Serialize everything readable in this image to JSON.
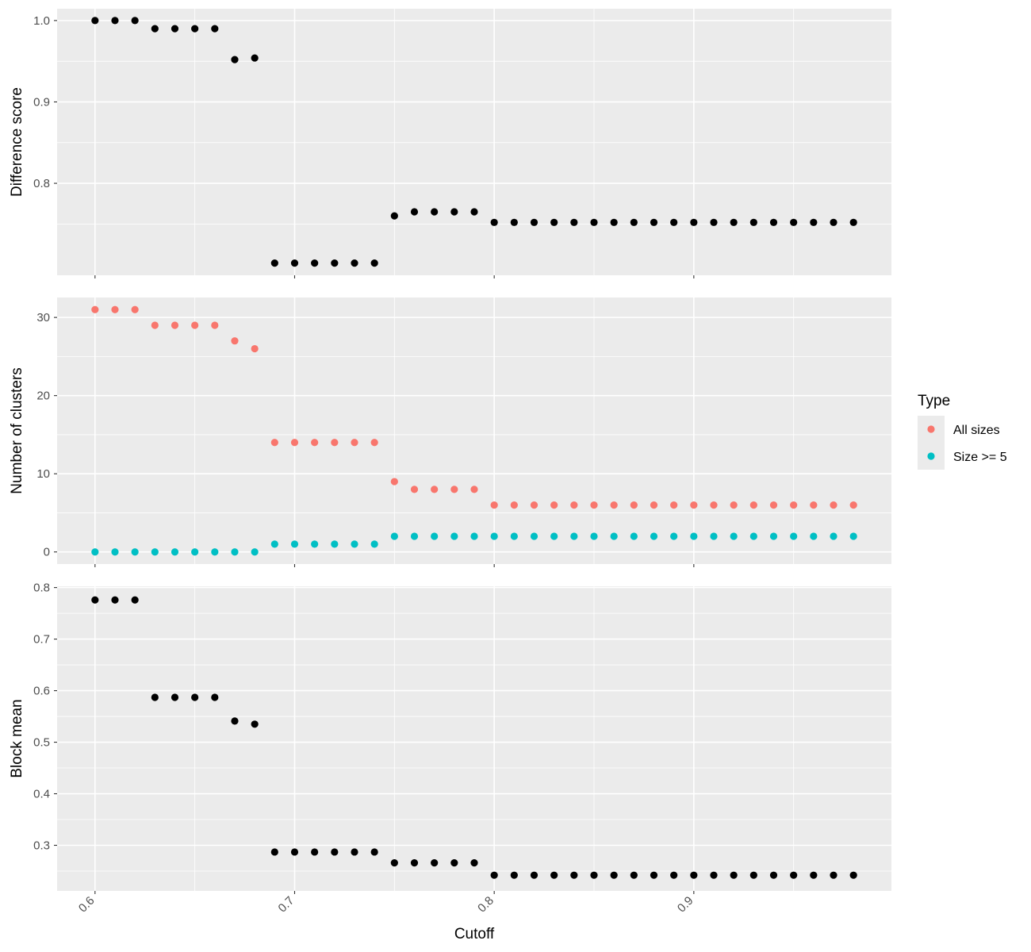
{
  "chart_data": {
    "type": "scatter",
    "xlabel": "Cutoff",
    "x_ticks": [
      "0.6",
      "0.7",
      "0.8",
      "0.9"
    ],
    "x_tick_values": [
      0.6,
      0.7,
      0.8,
      0.9
    ],
    "xlim": [
      0.581,
      0.999
    ],
    "grid": true,
    "legend_placement": "right",
    "x": [
      0.6,
      0.61,
      0.62,
      0.63,
      0.64,
      0.65,
      0.66,
      0.67,
      0.68,
      0.69,
      0.7,
      0.71,
      0.72,
      0.73,
      0.74,
      0.75,
      0.76,
      0.77,
      0.78,
      0.79,
      0.8,
      0.81,
      0.82,
      0.83,
      0.84,
      0.85,
      0.86,
      0.87,
      0.88,
      0.89,
      0.9,
      0.91,
      0.92,
      0.93,
      0.94,
      0.95,
      0.96,
      0.97,
      0.98
    ],
    "panels": [
      {
        "ylabel": "Difference score",
        "ylim": [
          0.687,
          1.0145
        ],
        "y_ticks": [
          "0.8",
          "0.9",
          "1.0"
        ],
        "y_tick_values": [
          0.8,
          0.9,
          1.0
        ],
        "series": [
          {
            "color": "#000000",
            "values": [
              1.0,
              1.0,
              1.0,
              0.99,
              0.99,
              0.99,
              0.99,
              0.952,
              0.954,
              0.702,
              0.702,
              0.702,
              0.702,
              0.702,
              0.702,
              0.76,
              0.765,
              0.765,
              0.765,
              0.765,
              0.752,
              0.752,
              0.752,
              0.752,
              0.752,
              0.752,
              0.752,
              0.752,
              0.752,
              0.752,
              0.752,
              0.752,
              0.752,
              0.752,
              0.752,
              0.752,
              0.752,
              0.752,
              0.752
            ]
          }
        ]
      },
      {
        "ylabel": "Number of clusters",
        "ylim": [
          -1.55,
          32.55
        ],
        "y_ticks": [
          "0",
          "10",
          "20",
          "30"
        ],
        "y_tick_values": [
          0,
          10,
          20,
          30
        ],
        "series": [
          {
            "name": "All sizes",
            "color": "#F8766D",
            "values": [
              31,
              31,
              31,
              29,
              29,
              29,
              29,
              27,
              26,
              14,
              14,
              14,
              14,
              14,
              14,
              9,
              8,
              8,
              8,
              8,
              6,
              6,
              6,
              6,
              6,
              6,
              6,
              6,
              6,
              6,
              6,
              6,
              6,
              6,
              6,
              6,
              6,
              6,
              6
            ]
          },
          {
            "name": "Size >= 5",
            "color": "#00BFC4",
            "values": [
              0,
              0,
              0,
              0,
              0,
              0,
              0,
              0,
              0,
              1,
              1,
              1,
              1,
              1,
              1,
              2,
              2,
              2,
              2,
              2,
              2,
              2,
              2,
              2,
              2,
              2,
              2,
              2,
              2,
              2,
              2,
              2,
              2,
              2,
              2,
              2,
              2,
              2,
              2
            ]
          }
        ]
      },
      {
        "ylabel": "Block mean",
        "ylim": [
          0.2115,
          0.8025
        ],
        "y_ticks": [
          "0.3",
          "0.4",
          "0.5",
          "0.6",
          "0.7",
          "0.8"
        ],
        "y_tick_values": [
          0.3,
          0.4,
          0.5,
          0.6,
          0.7,
          0.8
        ],
        "series": [
          {
            "color": "#000000",
            "values": [
              0.776,
              0.776,
              0.776,
              0.587,
              0.587,
              0.587,
              0.587,
              0.541,
              0.535,
              0.287,
              0.287,
              0.287,
              0.287,
              0.287,
              0.287,
              0.266,
              0.266,
              0.266,
              0.266,
              0.266,
              0.242,
              0.242,
              0.242,
              0.242,
              0.242,
              0.242,
              0.242,
              0.242,
              0.242,
              0.242,
              0.242,
              0.242,
              0.242,
              0.242,
              0.242,
              0.242,
              0.242,
              0.242,
              0.242
            ]
          }
        ]
      }
    ],
    "legend": {
      "title": "Type",
      "entries": [
        {
          "label": "All sizes",
          "color": "#F8766D"
        },
        {
          "label": "Size >= 5",
          "color": "#00BFC4"
        }
      ]
    }
  }
}
